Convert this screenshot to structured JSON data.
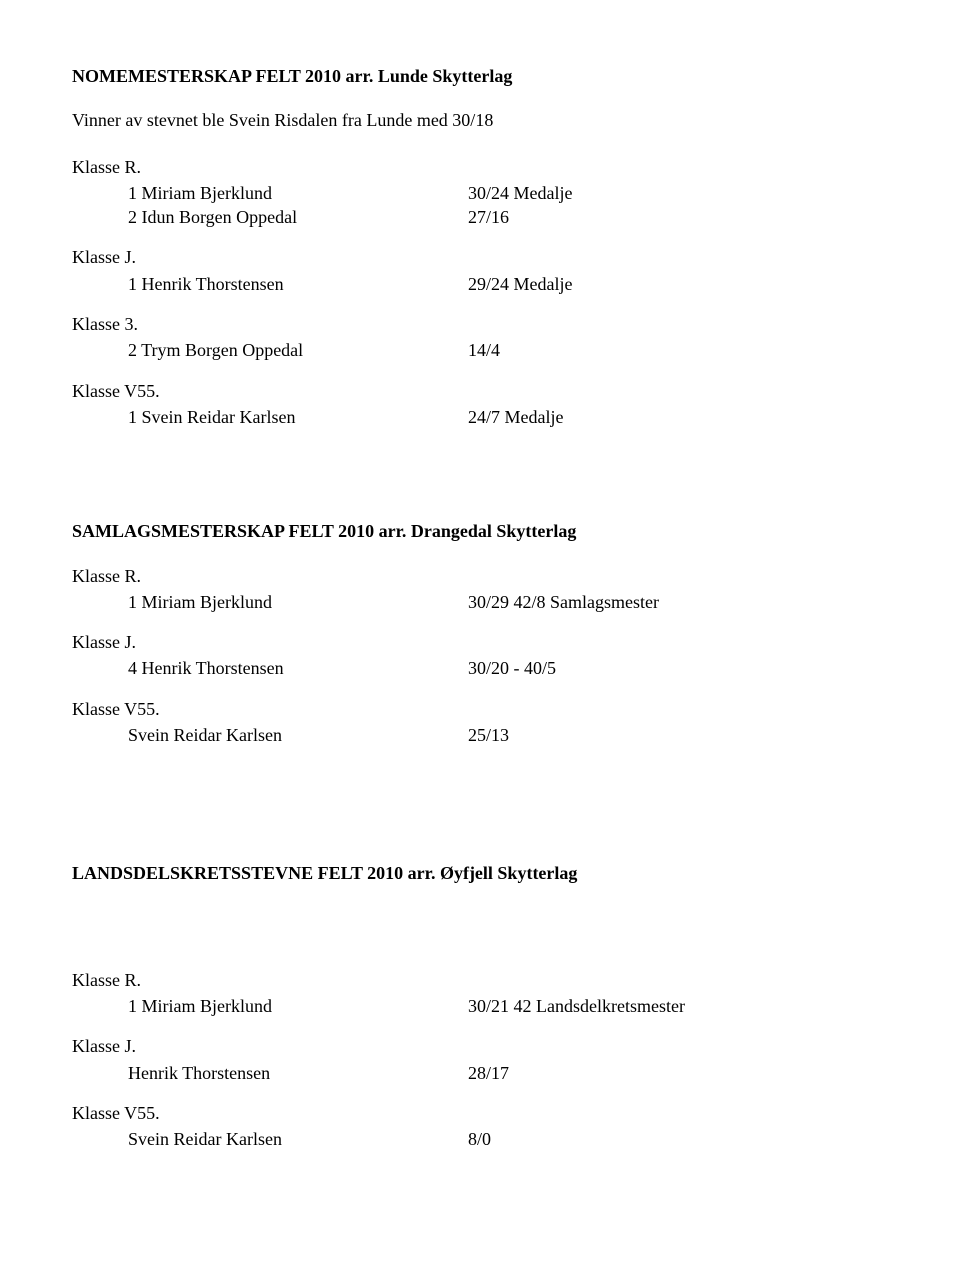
{
  "sections": [
    {
      "title": "NOMEMESTERSKAP FELT 2010 arr. Lunde Skytterlag",
      "subtitle": "Vinner av stevnet ble Svein Risdalen fra Lunde med 30/18",
      "groups": [
        {
          "label": "Klasse R.",
          "rows": [
            {
              "left": "1 Miriam Bjerklund",
              "right": "30/24 Medalje"
            },
            {
              "left": "2 Idun Borgen Oppedal",
              "right": "27/16"
            }
          ]
        },
        {
          "label": "Klasse J.",
          "rows": [
            {
              "left": "1 Henrik Thorstensen",
              "right": "29/24 Medalje"
            }
          ]
        },
        {
          "label": "Klasse 3.",
          "rows": [
            {
              "left": "2 Trym Borgen Oppedal",
              "right": "14/4"
            }
          ]
        },
        {
          "label": "Klasse V55.",
          "rows": [
            {
              "left": "1 Svein Reidar Karlsen",
              "right": "24/7 Medalje"
            }
          ]
        }
      ]
    },
    {
      "title": "SAMLAGSMESTERSKAP FELT 2010 arr. Drangedal Skytterlag",
      "groups": [
        {
          "label": "Klasse R.",
          "rows": [
            {
              "left": "1 Miriam Bjerklund",
              "right": "30/29 42/8 Samlagsmester"
            }
          ]
        },
        {
          "label": "Klasse J.",
          "rows": [
            {
              "left": "4 Henrik Thorstensen",
              "right": "30/20 - 40/5"
            }
          ]
        },
        {
          "label": "Klasse V55.",
          "rows": [
            {
              "left": "Svein Reidar Karlsen",
              "right": "25/13"
            }
          ]
        }
      ]
    },
    {
      "title": "LANDSDELSKRETSSTEVNE FELT 2010 arr. Øyfjell Skytterlag",
      "extra_gap": true,
      "groups": [
        {
          "label": "Klasse R.",
          "rows": [
            {
              "left": "1 Miriam Bjerklund",
              "right": "30/21 42 Landsdelkretsmester"
            }
          ]
        },
        {
          "label": "Klasse J.",
          "rows": [
            {
              "left": "Henrik Thorstensen",
              "right": "28/17"
            }
          ]
        },
        {
          "label": "Klasse V55.",
          "rows": [
            {
              "left": "Svein Reidar Karlsen",
              "right": "8/0"
            }
          ]
        }
      ]
    }
  ]
}
